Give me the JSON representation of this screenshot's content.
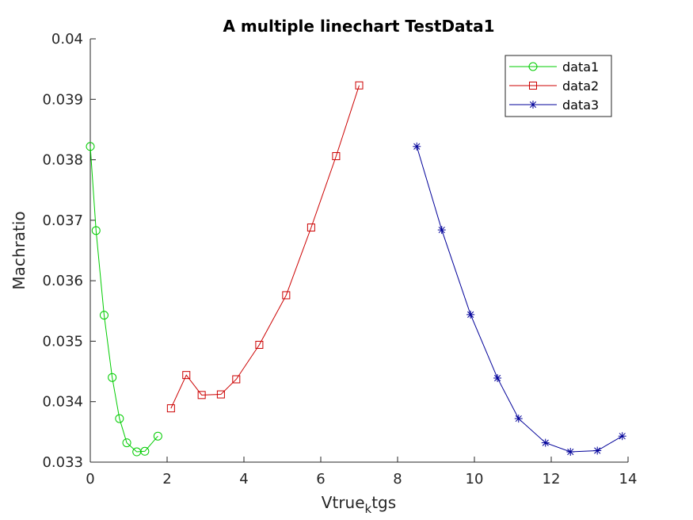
{
  "chart_data": {
    "type": "line",
    "title": "A multiple linechart TestData1",
    "xlabel": "Vtrue",
    "xlabel_subscript": "k",
    "xlabel_suffix": "tgs",
    "ylabel": "Machratio",
    "xlim": [
      0,
      14
    ],
    "ylim": [
      0.033,
      0.04
    ],
    "xticks": [
      0,
      2,
      4,
      6,
      8,
      10,
      12,
      14
    ],
    "xtick_labels": [
      "0",
      "2",
      "4",
      "6",
      "8",
      "10",
      "12",
      "14"
    ],
    "yticks": [
      0.033,
      0.034,
      0.035,
      0.036,
      0.037,
      0.038,
      0.039,
      0.04
    ],
    "ytick_labels": [
      "0.033",
      "0.034",
      "0.035",
      "0.036",
      "0.037",
      "0.038",
      "0.039",
      "0.04"
    ],
    "grid": false,
    "legend_position": "top-right",
    "series": [
      {
        "name": "data1",
        "color": "#00cc00",
        "marker": "circle",
        "x": [
          0.0,
          0.15,
          0.36,
          0.57,
          0.76,
          0.95,
          1.21,
          1.42,
          1.76
        ],
        "y": [
          0.03822,
          0.03683,
          0.03543,
          0.0344,
          0.03372,
          0.03332,
          0.03317,
          0.03318,
          0.03343
        ]
      },
      {
        "name": "data2",
        "color": "#cc0000",
        "marker": "square",
        "x": [
          2.1,
          2.5,
          2.9,
          3.4,
          3.8,
          4.4,
          5.1,
          5.75,
          6.4,
          7.0
        ],
        "y": [
          0.03389,
          0.03444,
          0.03411,
          0.03412,
          0.03437,
          0.03494,
          0.03576,
          0.03688,
          0.03806,
          0.03923
        ]
      },
      {
        "name": "data3",
        "color": "#000099",
        "marker": "asterisk",
        "x": [
          8.5,
          9.15,
          9.9,
          10.6,
          11.15,
          11.85,
          12.5,
          13.2,
          13.85
        ],
        "y": [
          0.03822,
          0.03684,
          0.03544,
          0.03439,
          0.03372,
          0.03332,
          0.03317,
          0.03319,
          0.03343
        ]
      }
    ]
  }
}
